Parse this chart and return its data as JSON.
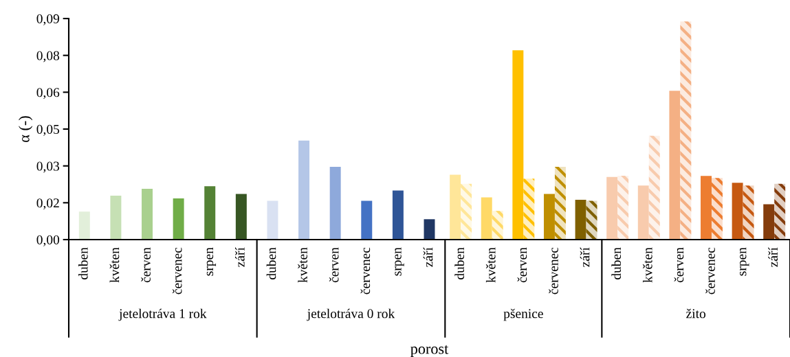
{
  "chart_data": {
    "type": "bar",
    "xlabel": "porost",
    "ylabel": "α (-)",
    "categories": [
      "duben",
      "květen",
      "červen",
      "červenec",
      "srpen",
      "září",
      "duben",
      "květen",
      "červen",
      "červenec",
      "srpen",
      "září",
      "duben",
      "květen",
      "červen",
      "červenec",
      "září",
      "duben",
      "květen",
      "červen",
      "červenec",
      "srpen",
      "září"
    ],
    "series": [
      {
        "colors": [
          "#e2efda",
          "#c6e0b4",
          "#a9d08e",
          "#70ad47",
          "#548235",
          "#375623",
          "#d9e1f2",
          "#b4c6e7",
          "#8ea9db",
          "#4472c4",
          "#2f5597",
          "#203764",
          "#ffe699",
          "#ffd966",
          "#ffc000",
          "#bf8f00",
          "#7f6000",
          "#f8cbad",
          "#f8cbad",
          "#f4b084",
          "#ed7d31",
          "#c65911",
          "#843c0c"
        ],
        "values": [
          0.0114,
          0.0179,
          0.0207,
          0.0168,
          0.0217,
          0.0186,
          0.0158,
          0.0403,
          0.0296,
          0.0158,
          0.02,
          0.0083,
          0.0264,
          0.0172,
          0.0771,
          0.0186,
          0.0162,
          0.0255,
          0.022,
          0.0606,
          0.0259,
          0.0231,
          0.0144
        ]
      },
      {
        "type": "bar",
        "colors": [
          null,
          null,
          null,
          null,
          null,
          null,
          null,
          null,
          null,
          null,
          null,
          null,
          "#ffe699",
          "#ffd966",
          "#ffc000",
          "#bf8f00",
          "#7f6000",
          "#f8cbad",
          "#f8cbad",
          "#f4b084",
          "#ed7d31",
          "#c65911",
          "#843c0c"
        ],
        "values": [
          null,
          null,
          null,
          null,
          null,
          null,
          null,
          null,
          null,
          null,
          null,
          null,
          0.0227,
          0.0117,
          0.0248,
          0.0296,
          0.0158,
          0.026,
          0.0423,
          0.0888,
          0.0251,
          0.022,
          0.0227
        ]
      }
    ],
    "annotations": [
      "jetelotráva 1 rok",
      "jetelotráva 0 rok",
      "pšenice",
      "žito"
    ],
    "ylim": [
      0,
      0.09
    ],
    "yticks": [
      {
        "value": 0,
        "label": "0,00"
      },
      {
        "value": 0.015,
        "label": "0,02"
      },
      {
        "value": 0.03,
        "label": "0,03"
      },
      {
        "value": 0.045,
        "label": "0,05"
      },
      {
        "value": 0.06,
        "label": "0,06"
      },
      {
        "value": 0.075,
        "label": "0,08"
      },
      {
        "value": 0.09,
        "label": "0,09"
      }
    ],
    "grid": false,
    "legend": false
  }
}
